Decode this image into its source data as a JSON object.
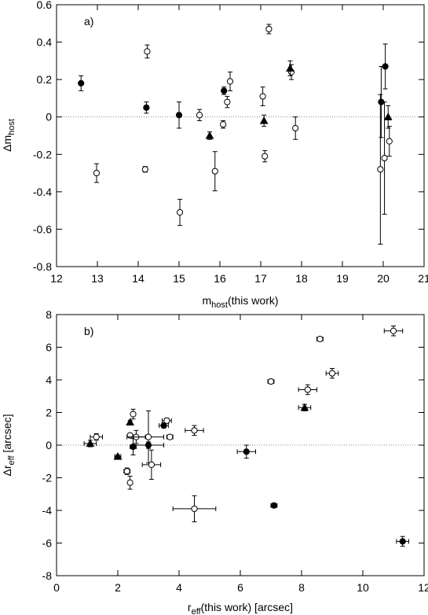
{
  "chart_data": [
    {
      "type": "scatter",
      "panel_label": "a)",
      "xlabel": {
        "main": "m",
        "sub": "host",
        "rest": "(this work)"
      },
      "ylabel": {
        "main": "Δm",
        "sub": "host"
      },
      "xlim": [
        12,
        21
      ],
      "ylim": [
        -0.8,
        0.6
      ],
      "xticks": [
        12,
        13,
        14,
        15,
        16,
        17,
        18,
        19,
        20,
        21
      ],
      "yticks": [
        -0.8,
        -0.6,
        -0.4,
        -0.2,
        0,
        0.2,
        0.4,
        0.6
      ],
      "ytick_labels": [
        "-0.8",
        "-0.6",
        "-0.4",
        "-0.2",
        "0",
        "0.2",
        "0.4",
        "0.6"
      ],
      "reference_line_y": 0,
      "grid": false,
      "series": [
        {
          "marker": "filled-circle",
          "points": [
            {
              "x": 12.6,
              "y": 0.18,
              "yerr": 0.04
            },
            {
              "x": 14.2,
              "y": 0.05,
              "yerr": 0.03
            },
            {
              "x": 15.0,
              "y": 0.01,
              "yerr": 0.07
            },
            {
              "x": 16.1,
              "y": 0.14,
              "yerr": 0.02
            },
            {
              "x": 19.95,
              "y": 0.08,
              "yerr": 0.19
            },
            {
              "x": 20.05,
              "y": 0.27,
              "yerr": 0.12
            }
          ]
        },
        {
          "marker": "open-circle",
          "points": [
            {
              "x": 12.98,
              "y": -0.3,
              "yerr": 0.05
            },
            {
              "x": 14.17,
              "y": -0.28,
              "yerr": 0.015
            },
            {
              "x": 14.22,
              "y": 0.35,
              "yerr": 0.035
            },
            {
              "x": 15.02,
              "y": -0.51,
              "yerr": 0.07
            },
            {
              "x": 15.5,
              "y": 0.01,
              "yerr": 0.03
            },
            {
              "x": 15.88,
              "y": -0.29,
              "yerr": 0.105
            },
            {
              "x": 16.08,
              "y": -0.04,
              "yerr": 0.02
            },
            {
              "x": 16.18,
              "y": 0.08,
              "yerr": 0.03
            },
            {
              "x": 16.25,
              "y": 0.19,
              "yerr": 0.05
            },
            {
              "x": 17.05,
              "y": 0.11,
              "yerr": 0.05
            },
            {
              "x": 17.1,
              "y": -0.21,
              "yerr": 0.03
            },
            {
              "x": 17.2,
              "y": 0.47,
              "yerr": 0.025
            },
            {
              "x": 17.75,
              "y": 0.24,
              "yerr": 0.04
            },
            {
              "x": 17.85,
              "y": -0.06,
              "yerr": 0.06
            },
            {
              "x": 19.93,
              "y": -0.28,
              "yerr": 0.4
            },
            {
              "x": 20.03,
              "y": -0.22,
              "yerr": 0.3
            },
            {
              "x": 20.15,
              "y": -0.13,
              "yerr": 0.08
            }
          ]
        },
        {
          "marker": "filled-triangle",
          "points": [
            {
              "x": 15.75,
              "y": -0.1,
              "yerr": 0.02
            },
            {
              "x": 17.08,
              "y": -0.02,
              "yerr": 0.03
            },
            {
              "x": 17.72,
              "y": 0.26,
              "yerr": 0.04
            },
            {
              "x": 20.12,
              "y": 0.0,
              "yerr": 0.06
            }
          ]
        }
      ]
    },
    {
      "type": "scatter",
      "panel_label": "b)",
      "xlabel": {
        "main": "r",
        "sub": "eff",
        "rest": "(this work) [arcsec]"
      },
      "ylabel": {
        "main": "Δr",
        "sub": "eff",
        "rest": " [arcsec]"
      },
      "xlim": [
        0,
        12
      ],
      "ylim": [
        -8,
        8
      ],
      "xticks": [
        0,
        2,
        4,
        6,
        8,
        10,
        12
      ],
      "yticks": [
        -8,
        -6,
        -4,
        -2,
        0,
        2,
        4,
        6,
        8
      ],
      "ytick_labels": [
        "-8",
        "-6",
        "-4",
        "-2",
        "0",
        "2",
        "4",
        "6",
        "8"
      ],
      "reference_line_y": 0,
      "grid": false,
      "series": [
        {
          "marker": "filled-circle",
          "points": [
            {
              "x": 2.5,
              "y": -0.1,
              "xerr": 0.1,
              "yerr": 0.5
            },
            {
              "x": 3.0,
              "y": 0.0,
              "xerr": 0.5,
              "yerr": 0.2
            },
            {
              "x": 3.5,
              "y": 1.2,
              "xerr": 0.15,
              "yerr": 0.15
            },
            {
              "x": 6.2,
              "y": -0.4,
              "xerr": 0.3,
              "yerr": 0.4
            },
            {
              "x": 7.1,
              "y": -3.7,
              "xerr": 0.1,
              "yerr": 0.1
            },
            {
              "x": 11.3,
              "y": -5.9,
              "xerr": 0.2,
              "yerr": 0.3
            }
          ]
        },
        {
          "marker": "open-circle",
          "points": [
            {
              "x": 1.3,
              "y": 0.5,
              "xerr": 0.2,
              "yerr": 0.2
            },
            {
              "x": 2.3,
              "y": -1.6,
              "xerr": 0.1,
              "yerr": 0.2
            },
            {
              "x": 2.4,
              "y": -2.3,
              "xerr": 0.05,
              "yerr": 0.4
            },
            {
              "x": 2.4,
              "y": 0.6,
              "xerr": 0.05,
              "yerr": 0.1
            },
            {
              "x": 2.5,
              "y": 1.9,
              "xerr": 0.05,
              "yerr": 0.3
            },
            {
              "x": 2.6,
              "y": 0.5,
              "xerr": 0.3,
              "yerr": 0.4
            },
            {
              "x": 3.0,
              "y": 0.5,
              "xerr": 0.5,
              "yerr": 1.6
            },
            {
              "x": 3.1,
              "y": -1.2,
              "xerr": 0.3,
              "yerr": 0.9
            },
            {
              "x": 3.6,
              "y": 1.5,
              "xerr": 0.15,
              "yerr": 0.15
            },
            {
              "x": 3.7,
              "y": 0.5,
              "xerr": 0.1,
              "yerr": 0.1
            },
            {
              "x": 4.5,
              "y": 0.9,
              "xerr": 0.3,
              "yerr": 0.3
            },
            {
              "x": 4.5,
              "y": -3.9,
              "xerr": 0.7,
              "yerr": 0.8
            },
            {
              "x": 7.0,
              "y": 3.9,
              "xerr": 0.1,
              "yerr": 0.1
            },
            {
              "x": 8.2,
              "y": 3.4,
              "xerr": 0.3,
              "yerr": 0.3
            },
            {
              "x": 8.6,
              "y": 6.5,
              "xerr": 0.1,
              "yerr": 0.1
            },
            {
              "x": 9.0,
              "y": 4.4,
              "xerr": 0.2,
              "yerr": 0.3
            },
            {
              "x": 11.0,
              "y": 7.0,
              "xerr": 0.3,
              "yerr": 0.3
            }
          ]
        },
        {
          "marker": "filled-triangle",
          "points": [
            {
              "x": 1.1,
              "y": 0.1,
              "xerr": 0.2,
              "yerr": 0.2
            },
            {
              "x": 2.0,
              "y": -0.7,
              "xerr": 0.1,
              "yerr": 0.1
            },
            {
              "x": 2.4,
              "y": 1.4,
              "xerr": 0.05,
              "yerr": 0.1
            },
            {
              "x": 8.1,
              "y": 2.3,
              "xerr": 0.2,
              "yerr": 0.2
            }
          ]
        }
      ]
    }
  ]
}
